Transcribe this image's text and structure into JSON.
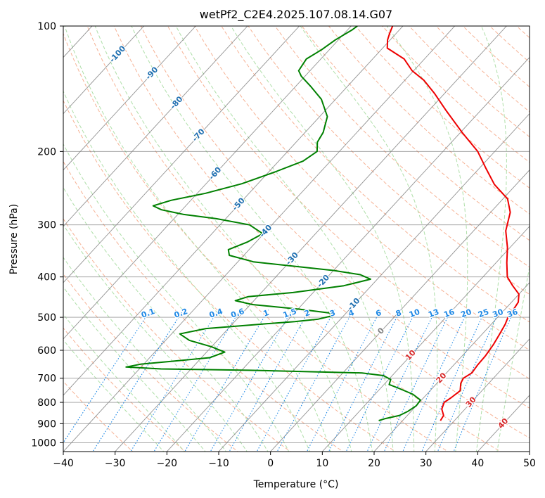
{
  "chart_data": {
    "type": "line",
    "title": "wetPf2_C2E4.2025.107.08.14.G07",
    "xlabel": "Temperature (°C)",
    "ylabel": "Pressure (hPa)",
    "xlim": [
      -40,
      50
    ],
    "ylim_pressure": [
      1050,
      100
    ],
    "y_scale": "log",
    "grid": true,
    "skew_slope_deg_per_decade": 74,
    "x_ticks": [
      -40,
      -30,
      -20,
      -10,
      0,
      10,
      20,
      30,
      40,
      50
    ],
    "x_tick_labels": [
      "−40",
      "−30",
      "−20",
      "−10",
      "0",
      "10",
      "20",
      "30",
      "40",
      "50"
    ],
    "y_ticks": [
      100,
      200,
      300,
      400,
      500,
      600,
      700,
      800,
      900,
      1000
    ],
    "y_tick_labels": [
      "100",
      "200",
      "300",
      "400",
      "500",
      "600",
      "700",
      "800",
      "900",
      "1000"
    ],
    "colors": {
      "temperature": "#ee0000",
      "dewpoint": "#008000",
      "isotherm": "#808080",
      "dry_adiabat": "#f4a582",
      "moist_adiabat": "#a6dba0",
      "mixing_ratio": "#1e88e5",
      "isotherm_label_neg": "#1f6fb0",
      "isotherm_label_pos": "#d62728",
      "zero_label": "#808080",
      "mixing_label": "#1e88e5"
    },
    "series": [
      {
        "key": "temperature",
        "points": [
          [
            885,
            27.3
          ],
          [
            860,
            27.0
          ],
          [
            830,
            25.5
          ],
          [
            800,
            24.8
          ],
          [
            780,
            25.3
          ],
          [
            750,
            25.8
          ],
          [
            720,
            24.6
          ],
          [
            700,
            24.2
          ],
          [
            680,
            24.9
          ],
          [
            650,
            24.6
          ],
          [
            620,
            24.5
          ],
          [
            580,
            24.0
          ],
          [
            550,
            23.4
          ],
          [
            520,
            22.7
          ],
          [
            500,
            22.0
          ],
          [
            480,
            21.7
          ],
          [
            460,
            21.3
          ],
          [
            440,
            20.0
          ],
          [
            420,
            17.3
          ],
          [
            400,
            14.7
          ],
          [
            370,
            12.1
          ],
          [
            340,
            9.5
          ],
          [
            310,
            6.2
          ],
          [
            280,
            3.8
          ],
          [
            260,
            0.9
          ],
          [
            240,
            -4.2
          ],
          [
            220,
            -8.6
          ],
          [
            200,
            -13.3
          ],
          [
            180,
            -19.7
          ],
          [
            160,
            -26.5
          ],
          [
            145,
            -32.0
          ],
          [
            135,
            -36.3
          ],
          [
            128,
            -40.3
          ],
          [
            120,
            -43.9
          ],
          [
            113,
            -49.1
          ],
          [
            108,
            -50.5
          ],
          [
            104,
            -51.3
          ],
          [
            100,
            -52.0
          ]
        ]
      },
      {
        "key": "dewpoint",
        "points": [
          [
            885,
            15.4
          ],
          [
            875,
            16.3
          ],
          [
            860,
            18.5
          ],
          [
            840,
            19.4
          ],
          [
            815,
            20.0
          ],
          [
            790,
            19.8
          ],
          [
            765,
            17.3
          ],
          [
            740,
            13.5
          ],
          [
            725,
            11.0
          ],
          [
            705,
            10.4
          ],
          [
            690,
            8.3
          ],
          [
            680,
            3.7
          ],
          [
            670,
            -18.6
          ],
          [
            665,
            -35.8
          ],
          [
            658,
            -42.9
          ],
          [
            648,
            -40.6
          ],
          [
            638,
            -35.2
          ],
          [
            625,
            -28.4
          ],
          [
            606,
            -26.5
          ],
          [
            588,
            -30.1
          ],
          [
            568,
            -35.4
          ],
          [
            548,
            -38.4
          ],
          [
            532,
            -34.3
          ],
          [
            520,
            -25.0
          ],
          [
            512,
            -18.4
          ],
          [
            505,
            -14.3
          ],
          [
            496,
            -12.2
          ],
          [
            488,
            -13.3
          ],
          [
            478,
            -19.8
          ],
          [
            466,
            -29.6
          ],
          [
            456,
            -33.6
          ],
          [
            446,
            -31.8
          ],
          [
            436,
            -23.9
          ],
          [
            420,
            -15.3
          ],
          [
            405,
            -11.3
          ],
          [
            395,
            -14.1
          ],
          [
            386,
            -20.0
          ],
          [
            376,
            -29.4
          ],
          [
            368,
            -37.0
          ],
          [
            355,
            -42.8
          ],
          [
            344,
            -44.0
          ],
          [
            330,
            -41.7
          ],
          [
            315,
            -40.2
          ],
          [
            300,
            -44.3
          ],
          [
            290,
            -51.8
          ],
          [
            283,
            -59.0
          ],
          [
            276,
            -64.0
          ],
          [
            270,
            -66.3
          ],
          [
            262,
            -63.8
          ],
          [
            252,
            -58.4
          ],
          [
            239,
            -53.1
          ],
          [
            224,
            -48.8
          ],
          [
            211,
            -45.3
          ],
          [
            200,
            -44.3
          ],
          [
            190,
            -45.9
          ],
          [
            180,
            -46.5
          ],
          [
            165,
            -48.5
          ],
          [
            150,
            -52.7
          ],
          [
            140,
            -56.9
          ],
          [
            132,
            -60.7
          ],
          [
            128,
            -62.2
          ],
          [
            120,
            -62.8
          ],
          [
            114,
            -61.5
          ],
          [
            108,
            -60.6
          ],
          [
            102,
            -59.1
          ],
          [
            100,
            -58.8
          ]
        ]
      }
    ],
    "isotherm_labels": [
      {
        "t": -100,
        "p": 117,
        "text": "-100"
      },
      {
        "t": -90,
        "p": 130,
        "text": "-90"
      },
      {
        "t": -80,
        "p": 153,
        "text": "-80"
      },
      {
        "t": -70,
        "p": 183,
        "text": "-70"
      },
      {
        "t": -60,
        "p": 226,
        "text": "-60"
      },
      {
        "t": -50,
        "p": 268,
        "text": "-50"
      },
      {
        "t": -40,
        "p": 311,
        "text": "-40"
      },
      {
        "t": -30,
        "p": 362,
        "text": "-30"
      },
      {
        "t": -20,
        "p": 410,
        "text": "-20"
      },
      {
        "t": -10,
        "p": 466,
        "text": "-10"
      },
      {
        "t": 0,
        "p": 540,
        "text": "0"
      },
      {
        "t": 10,
        "p": 617,
        "text": "10"
      },
      {
        "t": 20,
        "p": 700,
        "text": "20"
      },
      {
        "t": 30,
        "p": 800,
        "text": "30"
      },
      {
        "t": 40,
        "p": 900,
        "text": "40"
      }
    ],
    "mixing_ratios": [
      0.1,
      0.2,
      0.4,
      0.6,
      1,
      1.5,
      2,
      3,
      4,
      6,
      8,
      10,
      13,
      16,
      20,
      25,
      30,
      36
    ],
    "mixing_ratio_labels": [
      "0.1",
      "0.2",
      "0.4",
      "0.6",
      "1",
      "1.5",
      "2",
      "3",
      "4",
      "6",
      "8",
      "10",
      "13",
      "16",
      "20",
      "25",
      "30",
      "36"
    ],
    "mixing_ratio_label_pressure": 490
  }
}
